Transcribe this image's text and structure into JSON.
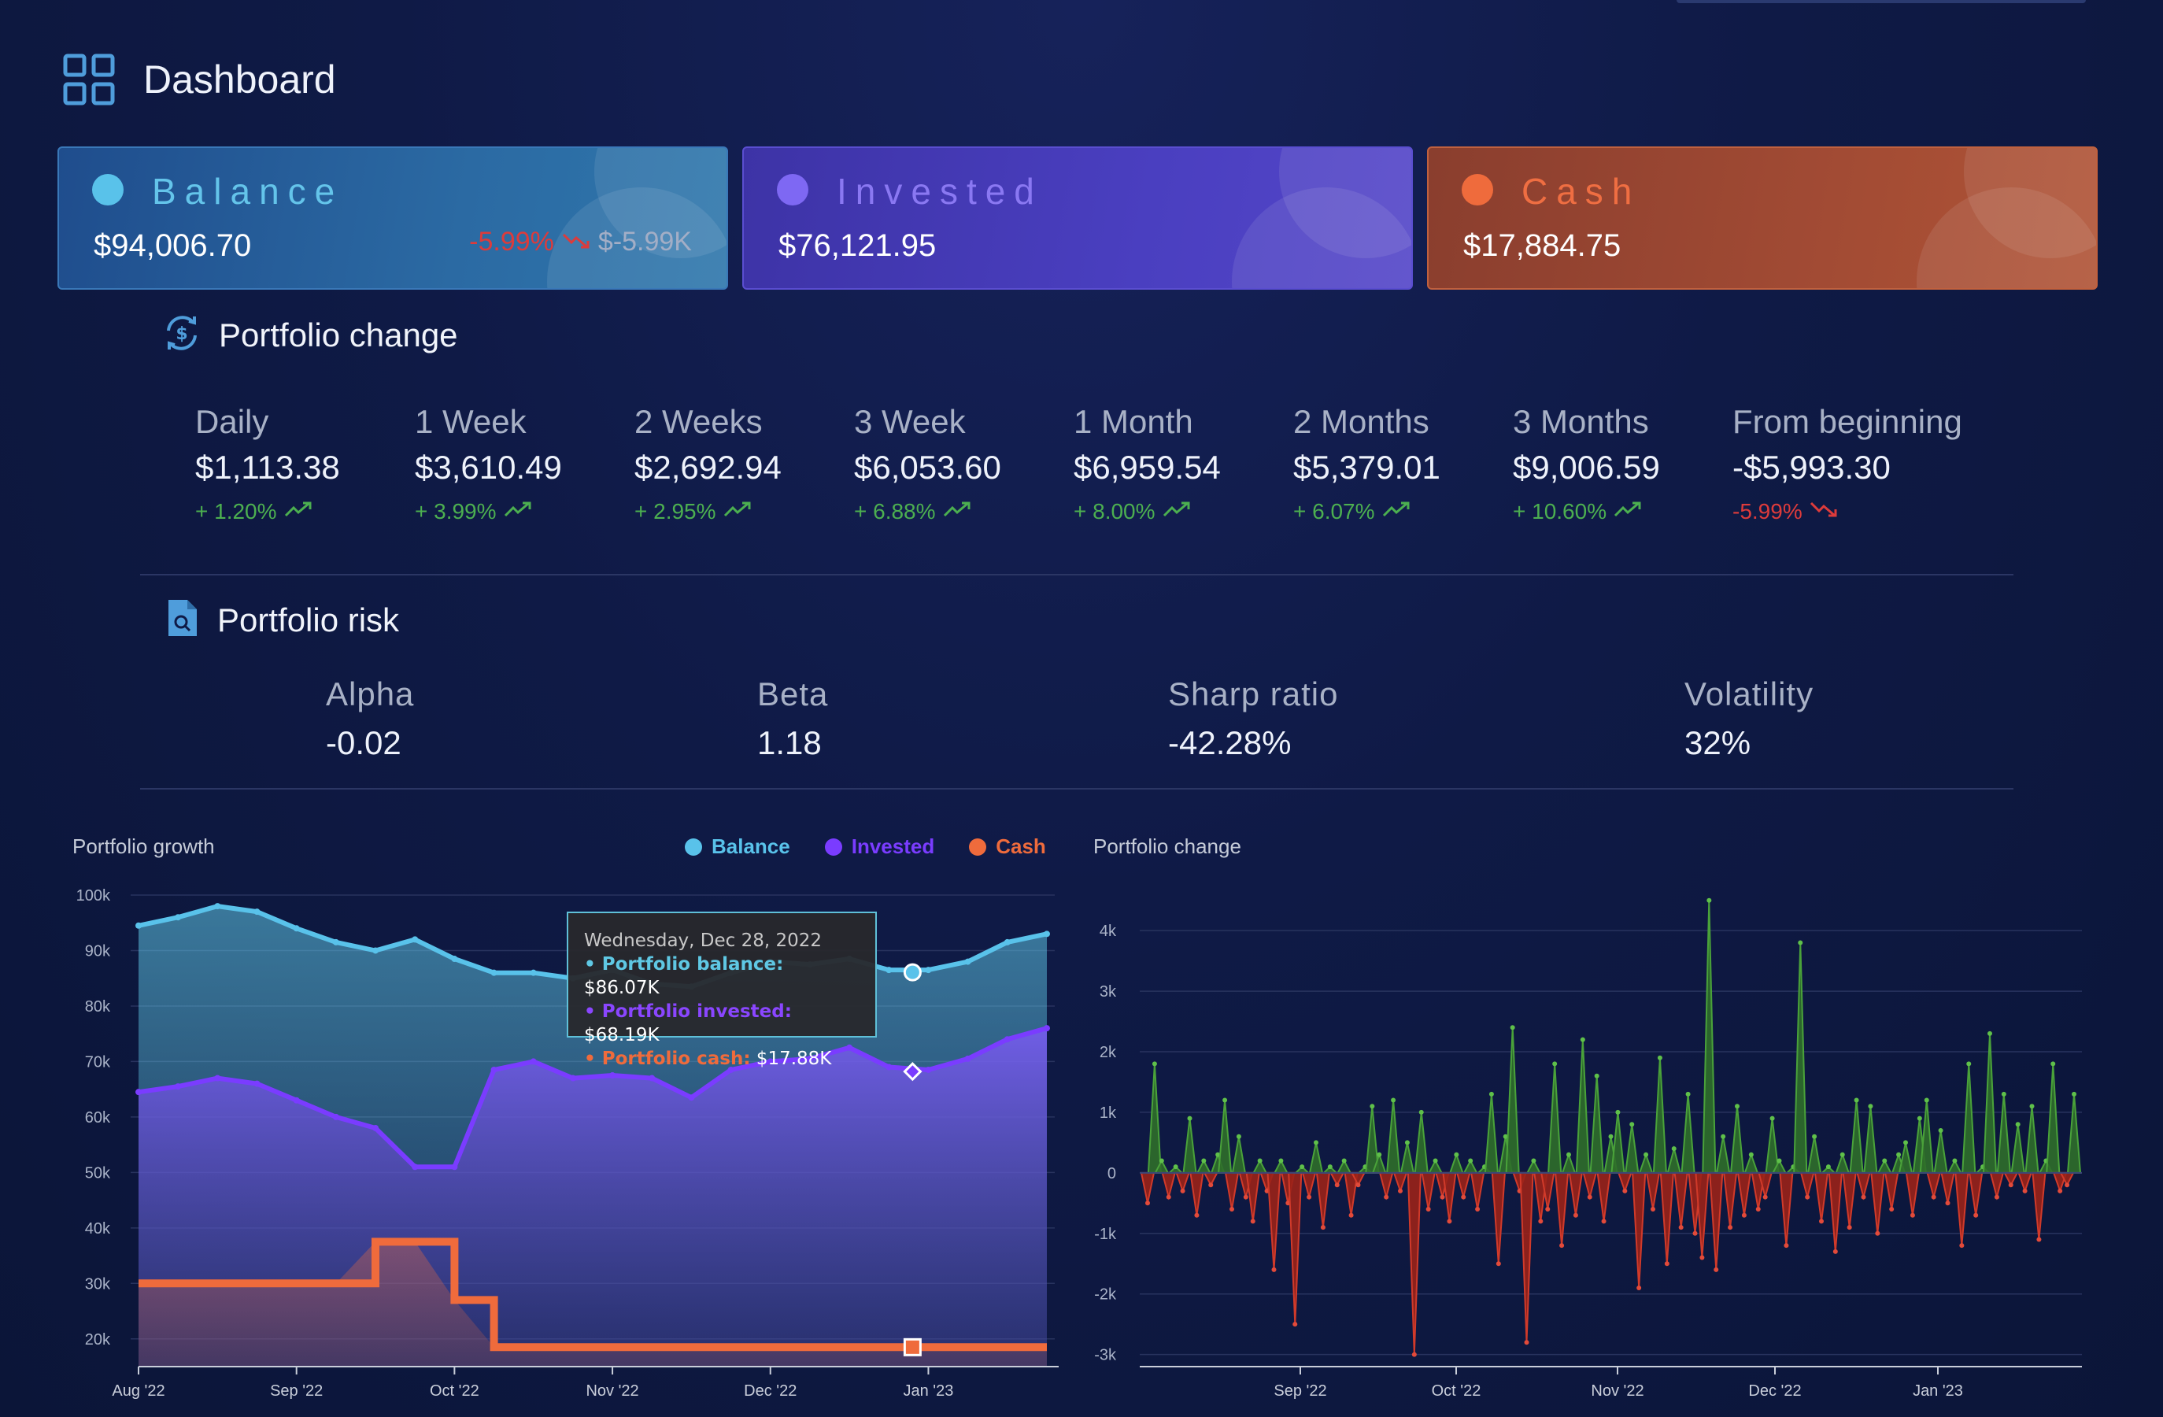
{
  "header": {
    "title": "Dashboard",
    "icon": "dashboard-grid-icon"
  },
  "cards": {
    "balance": {
      "label": "Balance",
      "value": "$94,006.70",
      "delta_pct": "-5.99%",
      "delta_abs": "$-5.99K",
      "color": "#59c2ea"
    },
    "invested": {
      "label": "Invested",
      "value": "$76,121.95",
      "color": "#7e68f3"
    },
    "cash": {
      "label": "Cash",
      "value": "$17,884.75",
      "color": "#ef6b3c"
    }
  },
  "portfolio_change": {
    "title": "Portfolio change",
    "items": [
      {
        "label": "Daily",
        "value": "$1,113.38",
        "pct": "+ 1.20%",
        "dir": "up"
      },
      {
        "label": "1 Week",
        "value": "$3,610.49",
        "pct": "+ 3.99%",
        "dir": "up"
      },
      {
        "label": "2 Weeks",
        "value": "$2,692.94",
        "pct": "+ 2.95%",
        "dir": "up"
      },
      {
        "label": "3 Week",
        "value": "$6,053.60",
        "pct": "+ 6.88%",
        "dir": "up"
      },
      {
        "label": "1 Month",
        "value": "$6,959.54",
        "pct": "+ 8.00%",
        "dir": "up"
      },
      {
        "label": "2 Months",
        "value": "$5,379.01",
        "pct": "+ 6.07%",
        "dir": "up"
      },
      {
        "label": "3 Months",
        "value": "$9,006.59",
        "pct": "+ 10.60%",
        "dir": "up"
      },
      {
        "label": "From beginning",
        "value": "-$5,993.30",
        "pct": "-5.99%",
        "dir": "down"
      }
    ]
  },
  "portfolio_risk": {
    "title": "Portfolio risk",
    "items": [
      {
        "label": "Alpha",
        "value": "-0.02"
      },
      {
        "label": "Beta",
        "value": "1.18"
      },
      {
        "label": "Sharp ratio",
        "value": "-42.28%"
      },
      {
        "label": "Volatility",
        "value": "32%"
      }
    ]
  },
  "tooltip": {
    "date": "Wednesday, Dec 28, 2022",
    "rows": [
      {
        "label": "Portfolio balance:",
        "value": "$86.07K",
        "color": "#5fc8e4"
      },
      {
        "label": "Portfolio invested:",
        "value": "$68.19K",
        "color": "#7a3cff"
      },
      {
        "label": "Portfolio cash:",
        "value": "$17.88K",
        "color": "#ef6b3c"
      }
    ]
  },
  "chart_data": [
    {
      "type": "area",
      "title": "Portfolio growth",
      "x_ticks": [
        "Aug '22",
        "Sep '22",
        "Oct '22",
        "Nov '22",
        "Dec '22",
        "Jan '23"
      ],
      "y_ticks": [
        "20k",
        "30k",
        "40k",
        "50k",
        "60k",
        "70k",
        "80k",
        "90k",
        "100k"
      ],
      "ylim": [
        15000,
        100000
      ],
      "legend": [
        "Balance",
        "Invested",
        "Cash"
      ],
      "legend_placement": "top-right",
      "colors": {
        "Balance": "#59c2ea",
        "Invested": "#7a3cff",
        "Cash": "#ef6b3c"
      },
      "x_months": [
        0,
        0.25,
        0.5,
        0.75,
        1,
        1.25,
        1.5,
        1.75,
        2,
        2.25,
        2.5,
        2.75,
        3,
        3.25,
        3.5,
        3.75,
        4,
        4.25,
        4.5,
        4.75,
        5,
        5.25,
        5.5,
        5.75
      ],
      "series": [
        {
          "name": "Balance",
          "values": [
            94500,
            96000,
            98000,
            97000,
            94000,
            91500,
            90000,
            92000,
            88500,
            86000,
            86000,
            85000,
            86500,
            84000,
            83500,
            86000,
            88000,
            87500,
            88500,
            86500,
            86500,
            88000,
            91500,
            93000
          ]
        },
        {
          "name": "Invested",
          "values": [
            64500,
            65500,
            67000,
            66000,
            63000,
            60000,
            58000,
            51000,
            51000,
            68500,
            70000,
            67000,
            67500,
            67000,
            63500,
            68500,
            70000,
            70500,
            72500,
            69000,
            68500,
            70500,
            74000,
            76000
          ]
        },
        {
          "name": "Cash",
          "values": [
            30000,
            30000,
            30000,
            30000,
            30000,
            30000,
            37500,
            37500,
            27000,
            18500,
            18500,
            18500,
            18500,
            18500,
            18500,
            18500,
            18500,
            18500,
            18500,
            18500,
            18500,
            18500,
            18500,
            18500
          ]
        }
      ]
    },
    {
      "type": "bar",
      "title": "Portfolio change",
      "x_ticks": [
        "Sep '22",
        "Oct '22",
        "Nov '22",
        "Dec '22",
        "Jan '23"
      ],
      "y_ticks": [
        "-3k",
        "-2k",
        "-1k",
        "0",
        "1k",
        "2k",
        "3k",
        "4k"
      ],
      "ylim": [
        -3200,
        4600
      ],
      "colors": {
        "positive": "#3a8f2e",
        "negative": "#b82a1f"
      },
      "values": [
        -500,
        1800,
        200,
        -400,
        100,
        -300,
        900,
        -700,
        200,
        -200,
        300,
        1200,
        -600,
        600,
        -400,
        -800,
        200,
        -300,
        -1600,
        200,
        -500,
        -2500,
        100,
        -400,
        500,
        -900,
        100,
        -200,
        200,
        -700,
        -200,
        100,
        1100,
        300,
        -400,
        1200,
        -300,
        500,
        -3000,
        1000,
        -600,
        200,
        -400,
        -800,
        300,
        -400,
        200,
        -600,
        100,
        1300,
        -1500,
        600,
        2400,
        -300,
        -2800,
        200,
        -800,
        -600,
        1800,
        -1200,
        300,
        -700,
        2200,
        -400,
        1600,
        -800,
        600,
        1000,
        -300,
        800,
        -1900,
        300,
        -600,
        1900,
        -1500,
        400,
        -900,
        1300,
        -1000,
        -1400,
        4500,
        -1600,
        600,
        -900,
        1100,
        -700,
        300,
        -600,
        -400,
        900,
        200,
        -1200,
        100,
        3800,
        -400,
        600,
        -800,
        100,
        -1300,
        300,
        -900,
        1200,
        -400,
        1100,
        -1000,
        200,
        -600,
        300,
        500,
        -700,
        900,
        1200,
        -400,
        700,
        -500,
        200,
        -1200,
        1800,
        -700,
        100,
        2300,
        -400,
        1300,
        -200,
        800,
        -300,
        1100,
        -1100,
        200,
        1800,
        -300,
        -200,
        1300
      ]
    }
  ]
}
